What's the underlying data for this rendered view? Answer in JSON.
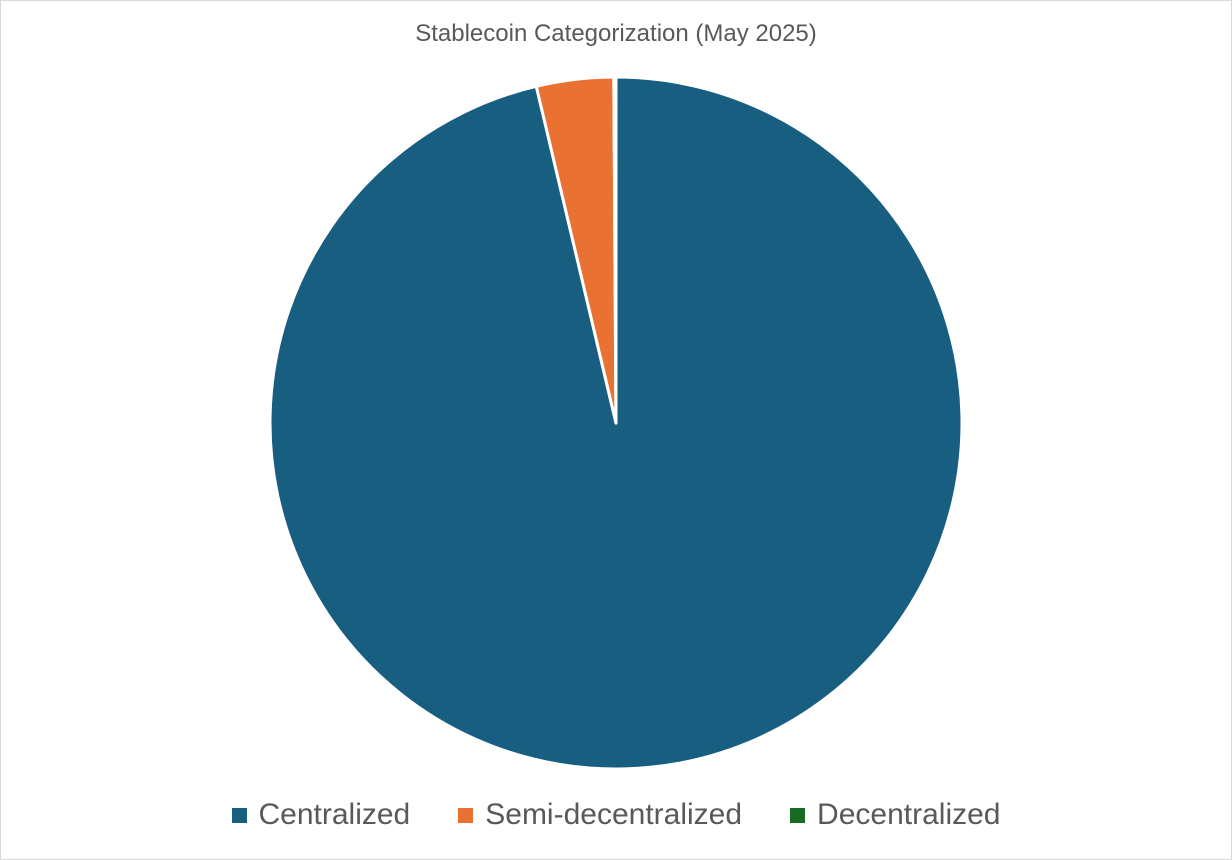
{
  "chart_data": {
    "type": "pie",
    "title": "Stablecoin Categorization (May 2025)",
    "slices": [
      {
        "label": "Centralized",
        "value": 96.3,
        "color": "#175E80"
      },
      {
        "label": "Semi-decentralized",
        "value": 3.6,
        "color": "#E97132"
      },
      {
        "label": "Decentralized",
        "value": 0.1,
        "color": "#196B24"
      }
    ],
    "legend_position": "bottom",
    "start_angle": "12 o'clock, clockwise"
  }
}
